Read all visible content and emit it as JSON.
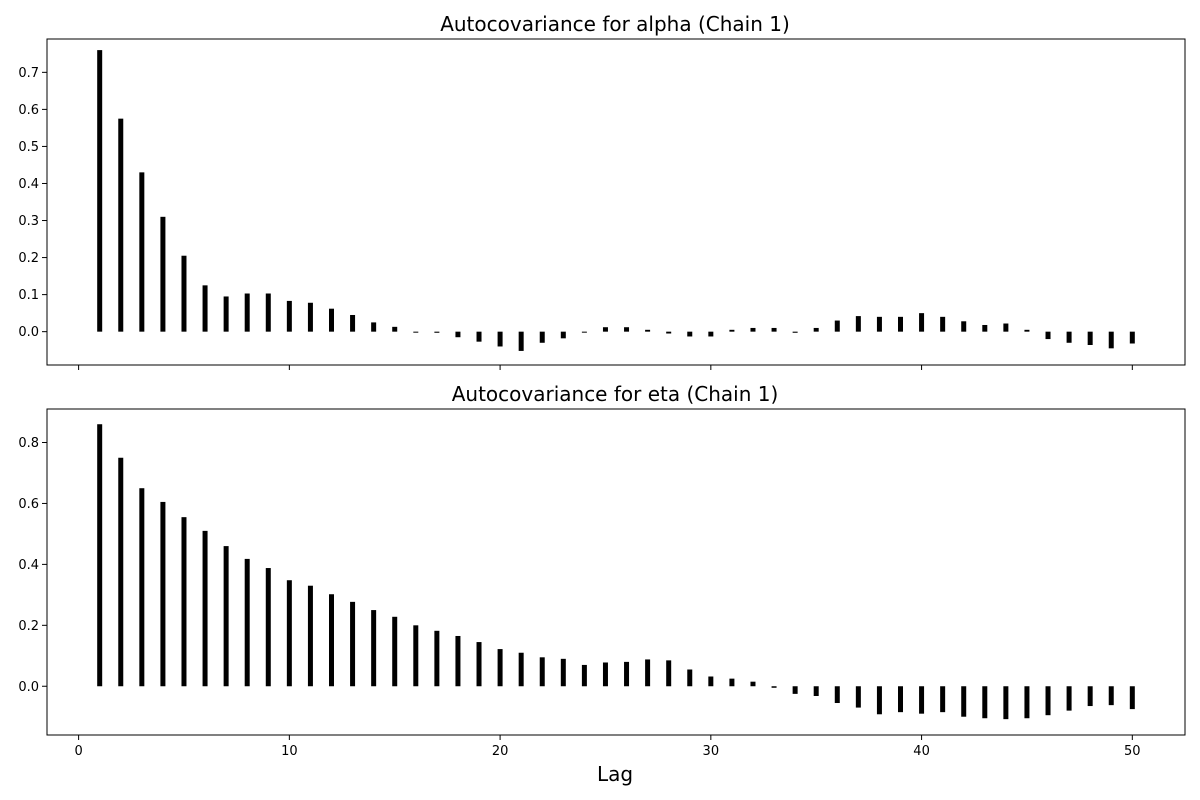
{
  "xlabel": "Lag",
  "chart_data": [
    {
      "type": "bar",
      "title": "Autocovariance  for alpha (Chain 1)",
      "xlabel": "",
      "ylabel": "",
      "xlim": [
        -1.5,
        52.5
      ],
      "ylim": [
        -0.09,
        0.79
      ],
      "xticks": [
        0,
        10,
        20,
        30,
        40,
        50
      ],
      "yticks": [
        0.0,
        0.1,
        0.2,
        0.3,
        0.4,
        0.5,
        0.6,
        0.7
      ],
      "ytick_labels": [
        "0.0",
        "0.1",
        "0.2",
        "0.3",
        "0.4",
        "0.5",
        "0.6",
        "0.7"
      ],
      "show_xtick_labels": false,
      "grid": false,
      "x": [
        1,
        2,
        3,
        4,
        5,
        6,
        7,
        8,
        9,
        10,
        11,
        12,
        13,
        14,
        15,
        16,
        17,
        18,
        19,
        20,
        21,
        22,
        23,
        24,
        25,
        26,
        27,
        28,
        29,
        30,
        31,
        32,
        33,
        34,
        35,
        36,
        37,
        38,
        39,
        40,
        41,
        42,
        43,
        44,
        45,
        46,
        47,
        48,
        49,
        50
      ],
      "values": [
        0.76,
        0.575,
        0.43,
        0.31,
        0.205,
        0.125,
        0.095,
        0.103,
        0.103,
        0.083,
        0.078,
        0.062,
        0.045,
        0.025,
        0.013,
        -0.002,
        -0.003,
        -0.015,
        -0.027,
        -0.04,
        -0.052,
        -0.03,
        -0.018,
        0.0,
        0.012,
        0.012,
        0.005,
        -0.005,
        -0.013,
        -0.013,
        0.005,
        0.01,
        0.01,
        -0.003,
        0.01,
        0.03,
        0.042,
        0.04,
        0.04,
        0.05,
        0.04,
        0.028,
        0.018,
        0.022,
        0.005,
        -0.02,
        -0.03,
        -0.036,
        -0.045,
        -0.032
      ]
    },
    {
      "type": "bar",
      "title": "Autocovariance for eta (Chain 1)",
      "xlabel": "Lag",
      "ylabel": "",
      "xlim": [
        -1.5,
        52.5
      ],
      "ylim": [
        -0.16,
        0.91
      ],
      "xticks": [
        0,
        10,
        20,
        30,
        40,
        50
      ],
      "xtick_labels": [
        "0",
        "10",
        "20",
        "30",
        "40",
        "50"
      ],
      "yticks": [
        0.0,
        0.2,
        0.4,
        0.6,
        0.8
      ],
      "ytick_labels": [
        "0.0",
        "0.2",
        "0.4",
        "0.6",
        "0.8"
      ],
      "show_xtick_labels": true,
      "grid": false,
      "x": [
        1,
        2,
        3,
        4,
        5,
        6,
        7,
        8,
        9,
        10,
        11,
        12,
        13,
        14,
        15,
        16,
        17,
        18,
        19,
        20,
        21,
        22,
        23,
        24,
        25,
        26,
        27,
        28,
        29,
        30,
        31,
        32,
        33,
        34,
        35,
        36,
        37,
        38,
        39,
        40,
        41,
        42,
        43,
        44,
        45,
        46,
        47,
        48,
        49,
        50
      ],
      "values": [
        0.86,
        0.75,
        0.65,
        0.605,
        0.555,
        0.51,
        0.46,
        0.418,
        0.388,
        0.348,
        0.33,
        0.302,
        0.277,
        0.25,
        0.228,
        0.2,
        0.182,
        0.165,
        0.145,
        0.122,
        0.11,
        0.095,
        0.09,
        0.07,
        0.078,
        0.08,
        0.088,
        0.085,
        0.055,
        0.032,
        0.025,
        0.015,
        -0.005,
        -0.025,
        -0.032,
        -0.055,
        -0.07,
        -0.092,
        -0.085,
        -0.09,
        -0.085,
        -0.1,
        -0.105,
        -0.108,
        -0.105,
        -0.095,
        -0.08,
        -0.065,
        -0.062,
        -0.075
      ]
    }
  ]
}
